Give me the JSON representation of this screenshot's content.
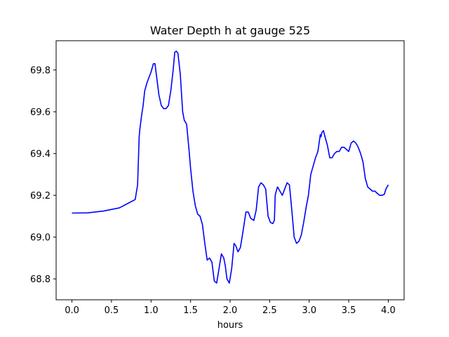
{
  "chart_data": {
    "type": "line",
    "title": "Water Depth h at gauge 525",
    "xlabel": "hours",
    "ylabel": "",
    "xlim": [
      -0.2,
      4.2
    ],
    "ylim": [
      68.7,
      69.94
    ],
    "xticks": [
      0.0,
      0.5,
      1.0,
      1.5,
      2.0,
      2.5,
      3.0,
      3.5,
      4.0
    ],
    "xtick_labels": [
      "0.0",
      "0.5",
      "1.0",
      "1.5",
      "2.0",
      "2.5",
      "3.0",
      "3.5",
      "4.0"
    ],
    "yticks": [
      68.8,
      69.0,
      69.2,
      69.4,
      69.6,
      69.8
    ],
    "ytick_labels": [
      "68.8",
      "69.0",
      "69.2",
      "69.4",
      "69.6",
      "69.8"
    ],
    "grid": false,
    "series": [
      {
        "color": "#0000ff",
        "x": [
          0.0,
          0.2,
          0.4,
          0.6,
          0.7,
          0.8,
          0.83,
          0.845,
          0.85,
          0.86,
          0.88,
          0.9,
          0.92,
          0.95,
          1.0,
          1.03,
          1.05,
          1.07,
          1.1,
          1.13,
          1.16,
          1.19,
          1.22,
          1.25,
          1.28,
          1.3,
          1.32,
          1.34,
          1.37,
          1.4,
          1.42,
          1.45,
          1.48,
          1.5,
          1.53,
          1.56,
          1.59,
          1.62,
          1.65,
          1.68,
          1.71,
          1.74,
          1.77,
          1.8,
          1.83,
          1.86,
          1.89,
          1.92,
          1.94,
          1.96,
          1.99,
          2.02,
          2.05,
          2.07,
          2.1,
          2.13,
          2.16,
          2.2,
          2.23,
          2.26,
          2.3,
          2.33,
          2.36,
          2.39,
          2.42,
          2.45,
          2.48,
          2.51,
          2.54,
          2.56,
          2.57,
          2.59,
          2.6,
          2.63,
          2.66,
          2.69,
          2.72,
          2.75,
          2.78,
          2.81,
          2.84,
          2.87,
          2.9,
          2.93,
          2.96,
          2.99,
          3.02,
          3.05,
          3.08,
          3.11,
          3.14,
          3.15,
          3.16,
          3.18,
          3.2,
          3.23,
          3.26,
          3.29,
          3.32,
          3.35,
          3.38,
          3.41,
          3.44,
          3.47,
          3.5,
          3.53,
          3.56,
          3.59,
          3.62,
          3.65,
          3.68,
          3.71,
          3.74,
          3.77,
          3.8,
          3.83,
          3.86,
          3.89,
          3.92,
          3.95,
          3.97,
          4.0
        ],
        "values": [
          69.115,
          69.116,
          69.125,
          69.14,
          69.16,
          69.18,
          69.25,
          69.42,
          69.48,
          69.52,
          69.58,
          69.63,
          69.7,
          69.74,
          69.79,
          69.83,
          69.83,
          69.77,
          69.68,
          69.63,
          69.615,
          69.615,
          69.63,
          69.7,
          69.8,
          69.885,
          69.89,
          69.88,
          69.78,
          69.6,
          69.56,
          69.54,
          69.42,
          69.33,
          69.22,
          69.15,
          69.11,
          69.1,
          69.06,
          68.97,
          68.89,
          68.9,
          68.88,
          68.79,
          68.78,
          68.85,
          68.92,
          68.9,
          68.86,
          68.8,
          68.78,
          68.85,
          68.97,
          68.96,
          68.93,
          68.95,
          69.02,
          69.12,
          69.12,
          69.09,
          69.08,
          69.13,
          69.24,
          69.26,
          69.25,
          69.23,
          69.1,
          69.07,
          69.065,
          69.08,
          69.2,
          69.23,
          69.24,
          69.22,
          69.2,
          69.23,
          69.26,
          69.25,
          69.13,
          69.0,
          68.97,
          68.98,
          69.01,
          69.07,
          69.14,
          69.2,
          69.3,
          69.34,
          69.38,
          69.41,
          69.49,
          69.48,
          69.5,
          69.51,
          69.48,
          69.44,
          69.38,
          69.38,
          69.4,
          69.41,
          69.41,
          69.43,
          69.43,
          69.42,
          69.41,
          69.45,
          69.46,
          69.45,
          69.43,
          69.4,
          69.36,
          69.28,
          69.24,
          69.23,
          69.22,
          69.22,
          69.21,
          69.2,
          69.2,
          69.205,
          69.23,
          69.25
        ]
      }
    ]
  }
}
